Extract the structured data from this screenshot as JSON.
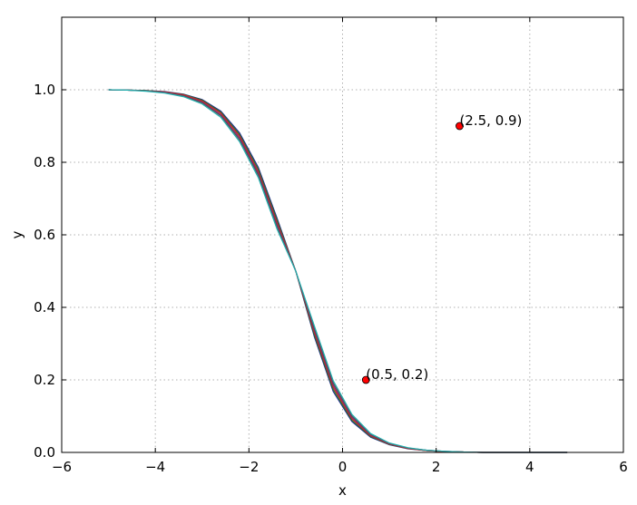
{
  "chart_data": {
    "type": "line",
    "title": "",
    "xlabel": "x",
    "ylabel": "y",
    "xlim": [
      -6,
      6
    ],
    "ylim": [
      0,
      1.2
    ],
    "x_ticks": [
      -6,
      -4,
      -2,
      0,
      2,
      4,
      6
    ],
    "x_tick_labels": [
      "−6",
      "−4",
      "−2",
      "0",
      "2",
      "4",
      "6"
    ],
    "y_ticks": [
      0,
      0.2,
      0.4,
      0.6,
      0.8,
      1.0
    ],
    "y_tick_labels": [
      "0.0",
      "0.2",
      "0.4",
      "0.6",
      "0.8",
      "1.0"
    ],
    "grid": true,
    "x": [
      -5.0,
      -4.6,
      -4.2,
      -3.8,
      -3.4,
      -3.0,
      -2.6,
      -2.2,
      -1.8,
      -1.4,
      -1.0,
      -0.6,
      -0.2,
      0.2,
      0.6,
      1.0,
      1.4,
      1.8,
      2.2,
      2.6,
      3.0,
      3.4,
      3.8,
      4.2,
      4.6,
      4.8
    ],
    "series": [
      {
        "color": "#1f2a8a",
        "values": [
          1.0,
          0.999,
          0.998,
          0.995,
          0.988,
          0.973,
          0.941,
          0.881,
          0.786,
          0.646,
          0.5,
          0.318,
          0.168,
          0.085,
          0.042,
          0.021,
          0.01,
          0.005,
          0.002,
          0.001,
          0.0,
          0.0,
          0.0,
          0.0,
          0.0,
          0.0
        ]
      },
      {
        "color": "#2a7a2a",
        "values": [
          1.0,
          0.999,
          0.998,
          0.994,
          0.987,
          0.971,
          0.938,
          0.876,
          0.78,
          0.64,
          0.5,
          0.324,
          0.174,
          0.089,
          0.044,
          0.022,
          0.011,
          0.005,
          0.002,
          0.001,
          0.0,
          0.0,
          0.0,
          0.0,
          0.0,
          0.0
        ]
      },
      {
        "color": "#d62020",
        "values": [
          1.0,
          0.999,
          0.997,
          0.994,
          0.986,
          0.969,
          0.935,
          0.872,
          0.774,
          0.634,
          0.5,
          0.33,
          0.18,
          0.093,
          0.046,
          0.023,
          0.011,
          0.005,
          0.002,
          0.001,
          0.0,
          0.0,
          0.0,
          0.0,
          0.0,
          0.0
        ]
      },
      {
        "color": "#7a2a7a",
        "values": [
          1.0,
          0.999,
          0.997,
          0.993,
          0.984,
          0.966,
          0.931,
          0.867,
          0.769,
          0.628,
          0.5,
          0.336,
          0.186,
          0.097,
          0.048,
          0.024,
          0.012,
          0.006,
          0.003,
          0.001,
          0.0,
          0.0,
          0.0,
          0.0,
          0.0,
          0.0
        ]
      },
      {
        "color": "#555555",
        "values": [
          1.0,
          0.999,
          0.997,
          0.992,
          0.983,
          0.964,
          0.928,
          0.862,
          0.764,
          0.622,
          0.5,
          0.342,
          0.192,
          0.101,
          0.05,
          0.025,
          0.012,
          0.006,
          0.003,
          0.001,
          0.0,
          0.0,
          0.0,
          0.0,
          0.0,
          0.0
        ]
      },
      {
        "color": "#20b0b0",
        "values": [
          1.0,
          0.999,
          0.996,
          0.991,
          0.981,
          0.961,
          0.924,
          0.857,
          0.758,
          0.616,
          0.5,
          0.348,
          0.198,
          0.105,
          0.052,
          0.026,
          0.013,
          0.006,
          0.003,
          0.001,
          0.0,
          0.0,
          0.0,
          0.0,
          0.0,
          0.0
        ]
      }
    ],
    "annotations": [
      {
        "x": 0.5,
        "y": 0.2,
        "label": "(0.5, 0.2)",
        "color": "#ff0000"
      },
      {
        "x": 2.5,
        "y": 0.9,
        "label": "(2.5, 0.9)",
        "color": "#ff0000"
      }
    ]
  }
}
